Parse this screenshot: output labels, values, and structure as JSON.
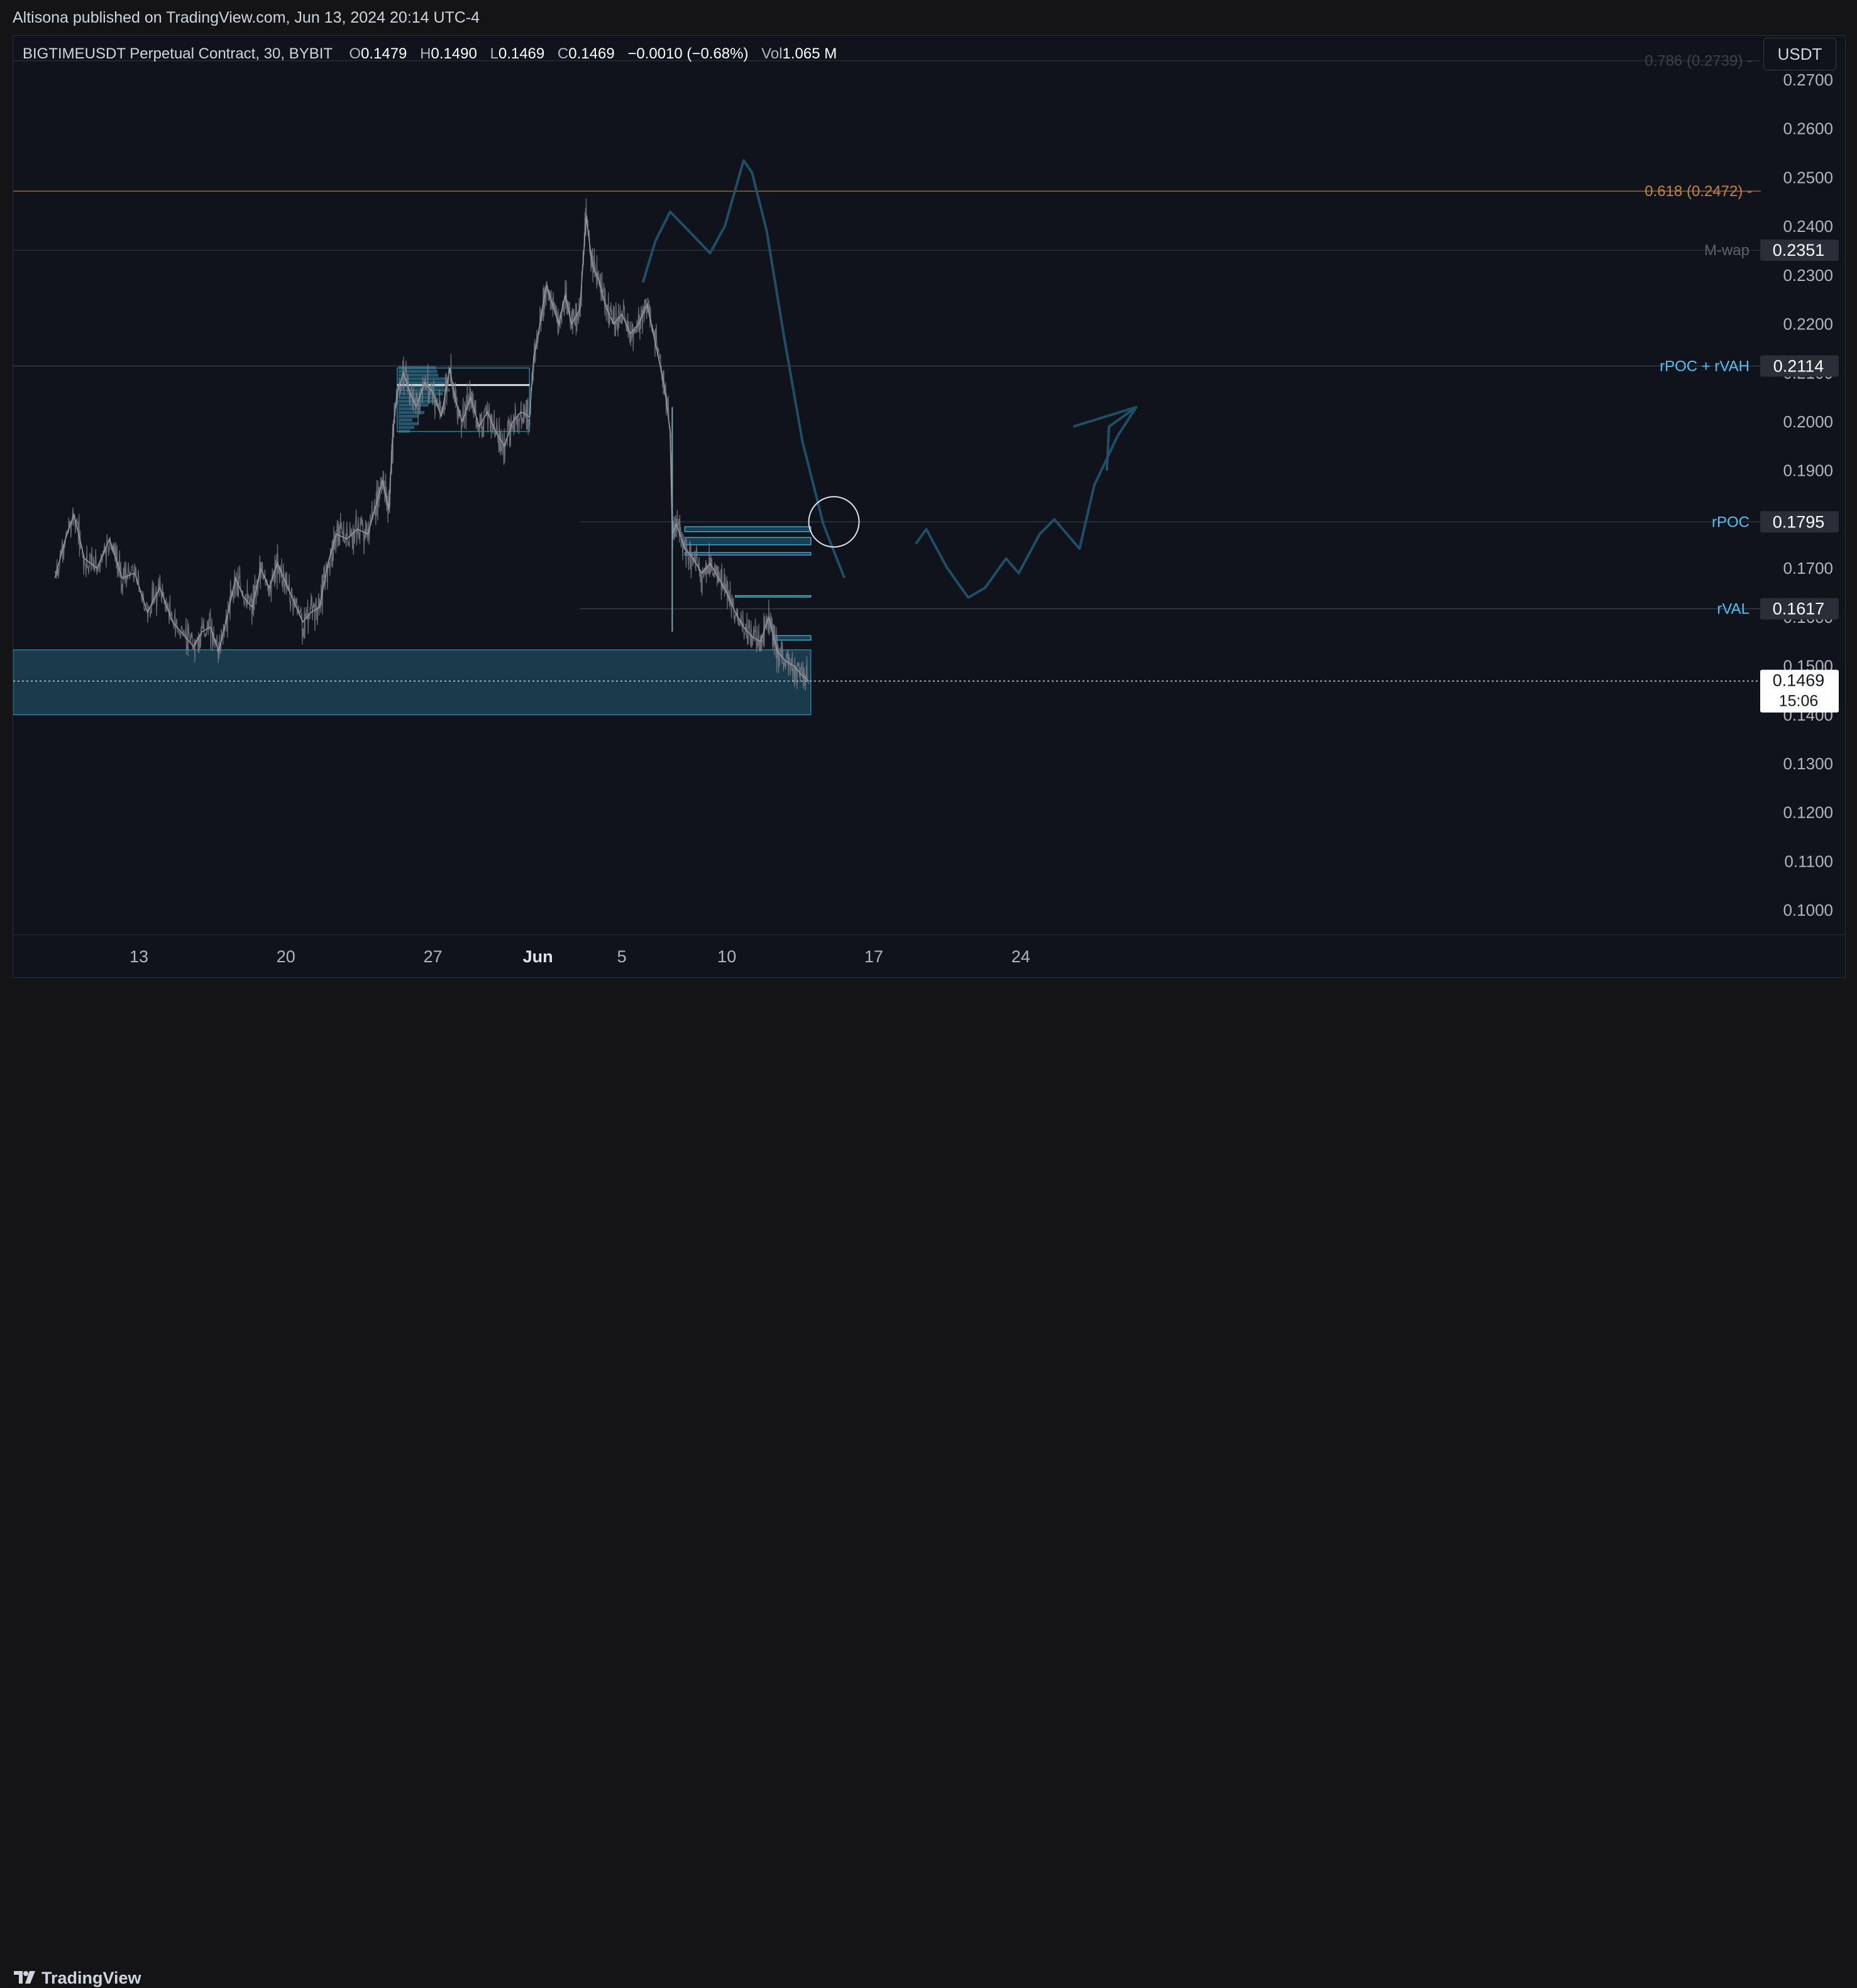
{
  "header": {
    "published": "Altisona published on TradingView.com, Jun 13, 2024 20:14 UTC-4"
  },
  "legend": {
    "symbol": "BIGTIMEUSDT Perpetual Contract, 30, BYBIT",
    "o_label": "O",
    "o_value": "0.1479",
    "h_label": "H",
    "h_value": "0.1490",
    "l_label": "L",
    "l_value": "0.1469",
    "c_label": "C",
    "c_value": "0.1469",
    "change": "−0.0010 (−0.68%)",
    "vol_label": "Vol",
    "vol_value": "1.065 M"
  },
  "currency": "USDT",
  "footer": {
    "brand": "TradingView"
  },
  "colors": {
    "background": "#10131b",
    "candle": "#787b86",
    "accent": "#4fc3f7",
    "zone": "#1e4a5c",
    "fib": "#c0853f",
    "drawing": "#1e4f66"
  },
  "chart_data": {
    "type": "line",
    "ylim": [
      0.095,
      0.279
    ],
    "x_tick_labels": [
      {
        "label": "13",
        "day": 0
      },
      {
        "label": "20",
        "day": 7
      },
      {
        "label": "27",
        "day": 14
      },
      {
        "label": "Jun",
        "day": 19,
        "bold": true
      },
      {
        "label": "5",
        "day": 23
      },
      {
        "label": "10",
        "day": 28
      },
      {
        "label": "17",
        "day": 35
      },
      {
        "label": "24",
        "day": 42
      }
    ],
    "y_ticks": [
      "0.2700",
      "0.2600",
      "0.2500",
      "0.2400",
      "0.2300",
      "0.2200",
      "0.2100",
      "0.2000",
      "0.1900",
      "0.1800",
      "0.1700",
      "0.1600",
      "0.1500",
      "0.1400",
      "0.1300",
      "0.1200",
      "0.1100",
      "0.1000"
    ],
    "price_path": [
      [
        -4.0,
        0.168
      ],
      [
        -3.5,
        0.176
      ],
      [
        -3.1,
        0.181
      ],
      [
        -2.6,
        0.172
      ],
      [
        -2.0,
        0.17
      ],
      [
        -1.4,
        0.176
      ],
      [
        -0.8,
        0.168
      ],
      [
        -0.2,
        0.169
      ],
      [
        0.4,
        0.161
      ],
      [
        1.0,
        0.166
      ],
      [
        1.6,
        0.159
      ],
      [
        2.2,
        0.156
      ],
      [
        2.6,
        0.154
      ],
      [
        3.0,
        0.157
      ],
      [
        3.4,
        0.158
      ],
      [
        3.8,
        0.153
      ],
      [
        4.2,
        0.16
      ],
      [
        4.6,
        0.168
      ],
      [
        5.0,
        0.164
      ],
      [
        5.4,
        0.162
      ],
      [
        5.8,
        0.17
      ],
      [
        6.2,
        0.166
      ],
      [
        6.6,
        0.171
      ],
      [
        7.0,
        0.167
      ],
      [
        7.4,
        0.163
      ],
      [
        7.8,
        0.159
      ],
      [
        8.2,
        0.161
      ],
      [
        8.6,
        0.162
      ],
      [
        9.0,
        0.171
      ],
      [
        9.4,
        0.177
      ],
      [
        9.9,
        0.176
      ],
      [
        10.4,
        0.178
      ],
      [
        10.9,
        0.177
      ],
      [
        11.3,
        0.183
      ],
      [
        11.6,
        0.188
      ],
      [
        11.9,
        0.182
      ],
      [
        12.1,
        0.198
      ],
      [
        12.3,
        0.206
      ],
      [
        12.6,
        0.21
      ],
      [
        12.9,
        0.206
      ],
      [
        13.2,
        0.203
      ],
      [
        13.6,
        0.208
      ],
      [
        14.0,
        0.206
      ],
      [
        14.4,
        0.201
      ],
      [
        14.8,
        0.211
      ],
      [
        15.1,
        0.204
      ],
      [
        15.4,
        0.2
      ],
      [
        15.8,
        0.205
      ],
      [
        16.2,
        0.199
      ],
      [
        16.6,
        0.202
      ],
      [
        17.0,
        0.198
      ],
      [
        17.4,
        0.195
      ],
      [
        17.8,
        0.2
      ],
      [
        18.2,
        0.202
      ],
      [
        18.6,
        0.201
      ],
      [
        18.8,
        0.213
      ],
      [
        19.1,
        0.22
      ],
      [
        19.4,
        0.228
      ],
      [
        19.7,
        0.224
      ],
      [
        20.0,
        0.22
      ],
      [
        20.3,
        0.226
      ],
      [
        20.6,
        0.22
      ],
      [
        21.0,
        0.223
      ],
      [
        21.3,
        0.242
      ],
      [
        21.6,
        0.232
      ],
      [
        21.9,
        0.229
      ],
      [
        22.2,
        0.224
      ],
      [
        22.6,
        0.22
      ],
      [
        23.0,
        0.222
      ],
      [
        23.4,
        0.218
      ],
      [
        23.8,
        0.22
      ],
      [
        24.2,
        0.224
      ],
      [
        24.6,
        0.216
      ],
      [
        25.0,
        0.208
      ],
      [
        25.3,
        0.198
      ],
      [
        25.4,
        0.177
      ],
      [
        25.6,
        0.179
      ],
      [
        26.0,
        0.174
      ],
      [
        26.4,
        0.172
      ],
      [
        26.8,
        0.169
      ],
      [
        27.2,
        0.171
      ],
      [
        27.6,
        0.168
      ],
      [
        28.0,
        0.165
      ],
      [
        28.4,
        0.161
      ],
      [
        28.8,
        0.158
      ],
      [
        29.2,
        0.156
      ],
      [
        29.6,
        0.155
      ],
      [
        30.0,
        0.16
      ],
      [
        30.4,
        0.153
      ],
      [
        30.8,
        0.151
      ],
      [
        31.2,
        0.15
      ],
      [
        31.6,
        0.148
      ],
      [
        31.9,
        0.1469
      ]
    ],
    "price_lines": [
      {
        "label": "0.786 (0.2739)",
        "price": 0.2739,
        "style": "fib-dim"
      },
      {
        "label": "0.618 (0.2472)",
        "price": 0.2472,
        "style": "fib"
      },
      {
        "label": "M-wap",
        "price": 0.2351,
        "value": "0.2351",
        "style": "gray"
      },
      {
        "label": "rPOC + rVAH",
        "price": 0.2114,
        "value": "0.2114",
        "style": "accent"
      },
      {
        "label": "rPOC",
        "price": 0.1795,
        "value": "0.1795",
        "style": "accent",
        "from_day": 21.0
      },
      {
        "label": "rVAL",
        "price": 0.1617,
        "value": "0.1617",
        "style": "accent",
        "from_day": 21.0
      }
    ],
    "current_price": {
      "value": "0.1469",
      "price": 0.1469,
      "countdown": "15:06"
    },
    "demand_zone": {
      "price_top": 0.1533,
      "price_bottom": 0.14,
      "day_end": 32.0
    },
    "value_area_box": {
      "day_start": 12.3,
      "day_end": 18.6,
      "price_top": 0.211,
      "price_bottom": 0.198,
      "poc": 0.2075
    },
    "small_boxes": [
      {
        "day_start": 26.0,
        "day_end": 32.0,
        "price_top": 0.1785,
        "price_bottom": 0.1775
      },
      {
        "day_start": 26.0,
        "day_end": 32.0,
        "price_top": 0.1763,
        "price_bottom": 0.1748
      },
      {
        "day_start": 26.0,
        "day_end": 32.0,
        "price_top": 0.1732,
        "price_bottom": 0.1727
      },
      {
        "day_start": 28.4,
        "day_end": 32.0,
        "price_top": 0.1644,
        "price_bottom": 0.1641
      },
      {
        "day_start": 30.2,
        "day_end": 32.0,
        "price_top": 0.1562,
        "price_bottom": 0.1553
      }
    ],
    "drawing_bearish": [
      [
        24.0,
        0.2285
      ],
      [
        24.6,
        0.237
      ],
      [
        25.3,
        0.243
      ],
      [
        26.2,
        0.239
      ],
      [
        27.2,
        0.2345
      ],
      [
        27.9,
        0.24
      ],
      [
        28.8,
        0.2535
      ],
      [
        29.2,
        0.251
      ],
      [
        29.9,
        0.239
      ],
      [
        30.7,
        0.218
      ],
      [
        31.6,
        0.196
      ],
      [
        32.6,
        0.179
      ],
      [
        33.6,
        0.168
      ]
    ],
    "drawing_bullish": [
      [
        37.0,
        0.175
      ],
      [
        37.5,
        0.178
      ],
      [
        38.5,
        0.17
      ],
      [
        39.5,
        0.164
      ],
      [
        40.3,
        0.166
      ],
      [
        41.3,
        0.172
      ],
      [
        41.9,
        0.169
      ],
      [
        42.9,
        0.177
      ],
      [
        43.6,
        0.18
      ],
      [
        44.4,
        0.176
      ],
      [
        44.8,
        0.174
      ],
      [
        45.5,
        0.187
      ],
      [
        46.6,
        0.197
      ],
      [
        47.5,
        0.203
      ]
    ],
    "drawing_arrow_head": [
      [
        46.1,
        0.19
      ],
      [
        46.2,
        0.199
      ],
      [
        47.5,
        0.203
      ],
      [
        44.5,
        0.199
      ]
    ],
    "target_circle": {
      "day": 33.1,
      "price": 0.1795
    }
  }
}
